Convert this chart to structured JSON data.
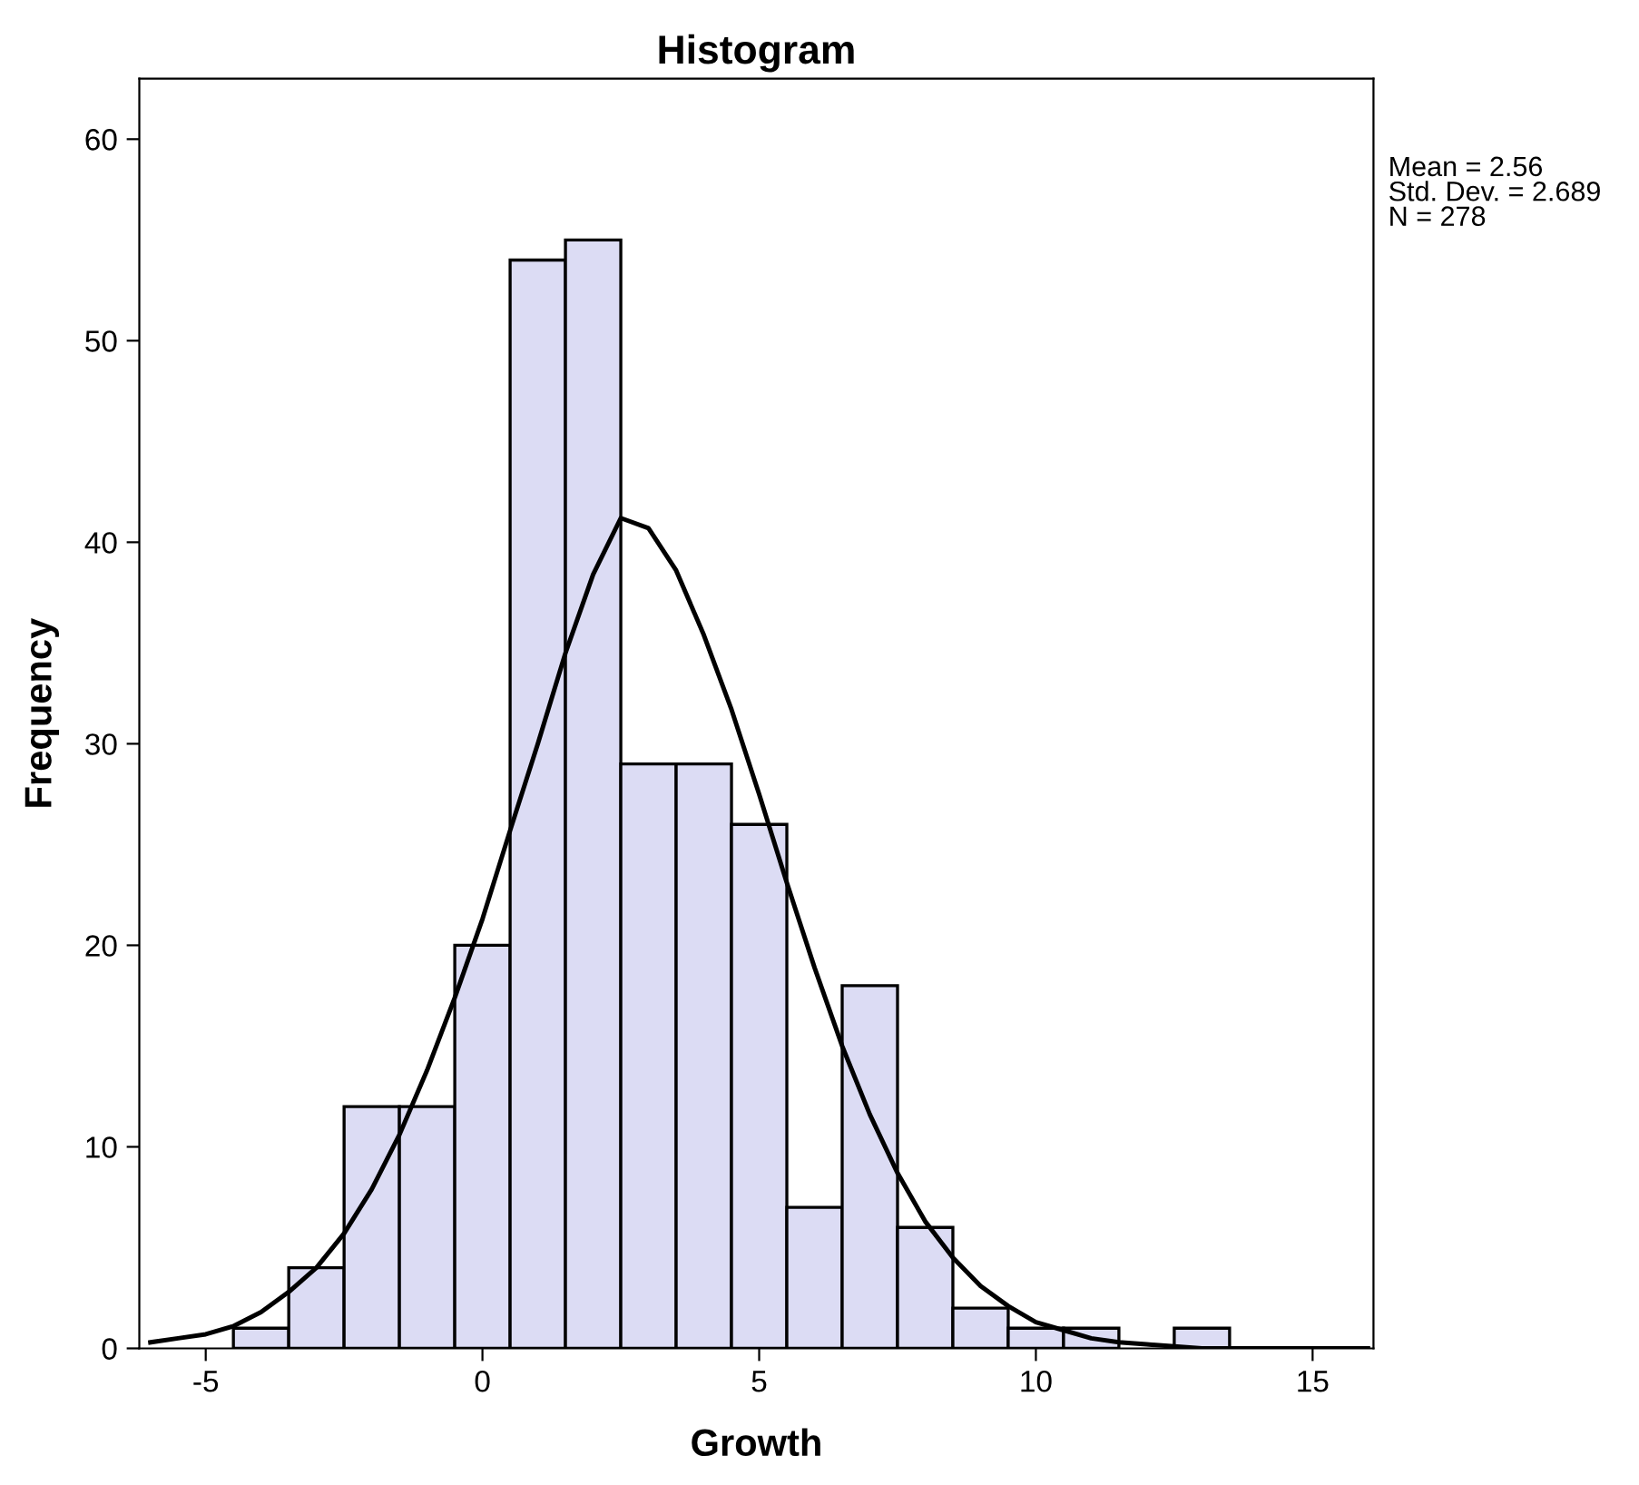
{
  "chart_data": {
    "type": "histogram",
    "title": "Histogram",
    "xlabel": "Growth",
    "ylabel": "Frequency",
    "bins": [
      -4.5,
      -3.5,
      -2.5,
      -1.5,
      -0.5,
      0.5,
      1.5,
      2.5,
      3.5,
      4.5,
      5.5,
      6.5,
      7.5,
      8.5,
      9.5,
      10.5,
      11.5,
      12.5,
      13.5
    ],
    "values": [
      1,
      4,
      12,
      12,
      20,
      54,
      55,
      29,
      29,
      26,
      7,
      18,
      6,
      2,
      1,
      1,
      0,
      1
    ],
    "color": "#dcdcf4",
    "series": [
      {
        "type": "line",
        "color": "#000000",
        "x": [
          -6,
          -5.5,
          -5,
          -4.5,
          -4,
          -3.5,
          -3,
          -2.5,
          -2,
          -1.5,
          -1,
          -0.5,
          0,
          0.5,
          1,
          1.5,
          2,
          2.5,
          3,
          3.5,
          4,
          4.5,
          5,
          5.5,
          6,
          6.5,
          7,
          7.5,
          8,
          8.5,
          9,
          9.5,
          10,
          10.5,
          11,
          11.5,
          12,
          12.5,
          13,
          14,
          15,
          16
        ],
        "values": [
          0.3,
          0.5,
          0.7,
          1.1,
          1.8,
          2.8,
          4.0,
          5.7,
          7.9,
          10.6,
          13.8,
          17.4,
          21.3,
          25.7,
          30.0,
          34.5,
          38.4,
          41.2,
          40.7,
          38.6,
          35.4,
          31.7,
          27.5,
          23.1,
          18.9,
          15.0,
          11.6,
          8.7,
          6.3,
          4.5,
          3.1,
          2.1,
          1.3,
          0.9,
          0.5,
          0.3,
          0.2,
          0.1,
          0,
          0,
          0,
          0
        ]
      }
    ],
    "xlim": [
      -6.2,
      16.1
    ],
    "ylim": [
      0,
      63
    ],
    "xticks": [
      -5,
      0,
      5,
      10,
      15
    ],
    "yticks": [
      0,
      10,
      20,
      30,
      40,
      50,
      60
    ],
    "grid": false,
    "annotations": [
      "Mean = 2.56\nStd. Dev. = 2.689\nN = 278"
    ]
  }
}
